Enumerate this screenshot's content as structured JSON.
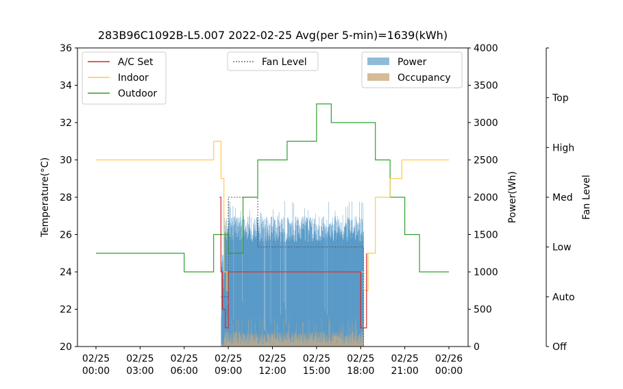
{
  "chart_data": {
    "type": "line",
    "title": "283B96C1092B-L5.007 2022-02-25 Avg(per 5-min)=1639(kWh)",
    "xlabel": "",
    "ylabel": "Temperature(°C)",
    "y2label": "Power(Wh)",
    "y3label": "Fan Level",
    "xlim": [
      0,
      24
    ],
    "ylim": [
      20,
      36
    ],
    "y2lim": [
      0,
      4000
    ],
    "x_ticks": [
      {
        "value": 0,
        "line1": "02/25",
        "line2": "00:00"
      },
      {
        "value": 3,
        "line1": "02/25",
        "line2": "03:00"
      },
      {
        "value": 6,
        "line1": "02/25",
        "line2": "06:00"
      },
      {
        "value": 9,
        "line1": "02/25",
        "line2": "09:00"
      },
      {
        "value": 12,
        "line1": "02/25",
        "line2": "12:00"
      },
      {
        "value": 15,
        "line1": "02/25",
        "line2": "15:00"
      },
      {
        "value": 18,
        "line1": "02/25",
        "line2": "18:00"
      },
      {
        "value": 21,
        "line1": "02/25",
        "line2": "21:00"
      },
      {
        "value": 24,
        "line1": "02/26",
        "line2": "00:00"
      }
    ],
    "y_ticks": [
      "20",
      "22",
      "24",
      "26",
      "28",
      "30",
      "32",
      "34",
      "36"
    ],
    "y2_ticks": [
      "0",
      "500",
      "1000",
      "1500",
      "2000",
      "2500",
      "3000",
      "3500",
      "4000"
    ],
    "fan_ticks": [
      "Off",
      "Auto",
      "Low",
      "Med",
      "High",
      "Top"
    ],
    "legends": {
      "temperature": [
        "A/C Set",
        "Indoor",
        "Outdoor"
      ],
      "fan": [
        "Fan Level"
      ],
      "power": [
        "Power",
        "Occupancy"
      ]
    },
    "series": [
      {
        "name": "Outdoor",
        "color": "#2ca02c",
        "x": [
          0,
          6,
          8,
          9,
          10,
          11,
          13,
          15,
          16,
          19,
          20,
          21,
          22,
          24
        ],
        "values": [
          25,
          24,
          26,
          25,
          28,
          30,
          31,
          33,
          32,
          30,
          28,
          26,
          24,
          24
        ]
      },
      {
        "name": "Indoor",
        "color": "#ffc94d",
        "x": [
          0,
          8,
          8.5,
          8.7,
          8.9,
          9,
          18,
          18.2,
          18.5,
          19,
          20,
          20.8,
          24
        ],
        "values": [
          30,
          31,
          29,
          24,
          23,
          24,
          24,
          23,
          25,
          28,
          29,
          30,
          30
        ]
      },
      {
        "name": "A/C Set",
        "color": "#d62728",
        "x": [
          8.4,
          8.5,
          8.6,
          8.8,
          9,
          17.8,
          18,
          18.2,
          18.4
        ],
        "values": [
          28,
          24,
          22,
          21,
          24,
          24,
          21,
          21,
          25
        ]
      },
      {
        "name": "Fan Level",
        "color": "#555555",
        "x": [
          8.5,
          9,
          10,
          11,
          18,
          18.2
        ],
        "values": [
          1,
          3,
          3,
          2,
          2,
          0
        ]
      },
      {
        "name": "Power",
        "color": "#1f77b4",
        "x_range": [
          8.5,
          18.2
        ],
        "approx_values": [
          1600,
          1800,
          1700,
          1600
        ]
      },
      {
        "name": "Occupancy",
        "color": "#d2b48c",
        "x_range": [
          8.5,
          18.2
        ],
        "approx_values": [
          50,
          250,
          200,
          150
        ]
      }
    ]
  }
}
